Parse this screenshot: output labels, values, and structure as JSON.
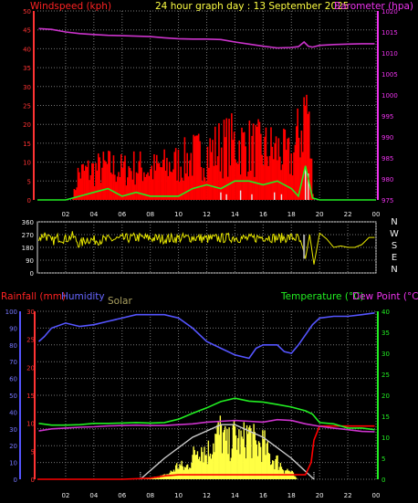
{
  "colors": {
    "background": "#000000",
    "grid": "#777777",
    "windspeed": "#ff0000",
    "wind_avg": "#22ee22",
    "gust_bars": "#e8e8e8",
    "barometer": "#cc33cc",
    "winddir": "#e8e800",
    "rainfall": "#ff0000",
    "humidity": "#5555ff",
    "solar": "#ffff44",
    "solar_max": "#cccccc",
    "temperature": "#22ee22",
    "dewpoint": "#cc33cc",
    "title": "#ffff44",
    "axis_left_top": "#ff2222",
    "axis_right_top": "#ee33ee",
    "solar_label": "#aaa060"
  },
  "chart_data": [
    {
      "id": "wind-baro",
      "type": "line",
      "title": "24 hour graph day : 13 September 2025",
      "left_label": "Windspeed (kph)",
      "right_label": "Barometer (hpa)",
      "x_ticks": [
        "02",
        "04",
        "06",
        "08",
        "10",
        "12",
        "14",
        "16",
        "18",
        "20",
        "22",
        "00"
      ],
      "x_hours": [
        2,
        4,
        6,
        8,
        10,
        12,
        14,
        16,
        18,
        20,
        22,
        24
      ],
      "ylim_left": [
        0,
        50
      ],
      "yticks_left": [
        "0",
        "5",
        "10",
        "15",
        "20",
        "25",
        "30",
        "35",
        "40",
        "45",
        "50"
      ],
      "ylim_right": [
        975,
        1020
      ],
      "yticks_right": [
        "975",
        "980",
        "985",
        "990",
        "995",
        "1000",
        "1005",
        "1010",
        "1015",
        "1020"
      ],
      "grid": true,
      "series": [
        {
          "key": "barometer",
          "axis": "right",
          "x": [
            0.1,
            1.0,
            2.0,
            3.0,
            4.0,
            5.0,
            6.0,
            7.0,
            8.0,
            9.0,
            10.0,
            11.0,
            12.0,
            13.0,
            14.0,
            15.0,
            16.0,
            17.0,
            18.0,
            18.5,
            18.9,
            19.2,
            19.5,
            20.0,
            21.0,
            22.0,
            23.0,
            23.9
          ],
          "y": [
            1015.8,
            1015.6,
            1015.0,
            1014.6,
            1014.4,
            1014.2,
            1014.1,
            1014.0,
            1013.9,
            1013.6,
            1013.4,
            1013.3,
            1013.3,
            1013.2,
            1012.6,
            1012.1,
            1011.6,
            1011.2,
            1011.3,
            1011.5,
            1012.6,
            1011.6,
            1011.4,
            1011.8,
            1012.0,
            1012.1,
            1012.2,
            1012.2
          ]
        },
        {
          "key": "wind_avg",
          "axis": "left",
          "x": [
            0,
            2,
            3,
            4,
            5,
            6,
            7,
            8,
            9,
            10,
            11,
            12,
            13,
            14,
            15,
            16,
            17,
            18,
            18.5,
            19,
            19.5,
            20,
            22,
            24
          ],
          "y": [
            0,
            0,
            1,
            2,
            3,
            1,
            2,
            1,
            1,
            1,
            3,
            4,
            3,
            5,
            5,
            4,
            5,
            3,
            1,
            9,
            0.5,
            0,
            0,
            0
          ]
        }
      ],
      "gust_profile": {
        "x": [
          0,
          2.5,
          2.9,
          4,
          5,
          6,
          7,
          8,
          9,
          10,
          11,
          12,
          13,
          14,
          15,
          16,
          17,
          18,
          18.6,
          19.1,
          19.6,
          21,
          24
        ],
        "y": [
          0,
          0,
          8,
          9,
          10,
          9,
          10,
          9,
          10,
          11,
          13,
          14,
          16,
          17,
          16,
          15,
          15,
          12,
          20,
          30,
          0,
          0,
          0
        ]
      }
    },
    {
      "id": "winddir",
      "type": "line",
      "ylim": [
        0,
        360
      ],
      "yticks": [
        "0",
        "90",
        "180",
        "270",
        "360"
      ],
      "compass_labels": [
        "N",
        "W",
        "S",
        "E",
        "N"
      ],
      "x": [
        0.1,
        0.5,
        1.0,
        1.5,
        2.0,
        2.5,
        3.0,
        3.5,
        4.0,
        5.0,
        6.0,
        7.0,
        8.0,
        9.0,
        10.0,
        11.0,
        12.0,
        13.0,
        14.0,
        15.0,
        16.0,
        17.0,
        18.0,
        18.5,
        19.0,
        19.3,
        19.6,
        20.0,
        20.5,
        21.0,
        21.5,
        22.0,
        22.5,
        23.0,
        23.5,
        23.9
      ],
      "y": [
        240,
        275,
        220,
        250,
        240,
        260,
        200,
        240,
        230,
        235,
        240,
        250,
        245,
        240,
        245,
        250,
        240,
        245,
        250,
        240,
        255,
        245,
        250,
        245,
        100,
        270,
        60,
        280,
        240,
        180,
        190,
        180,
        180,
        200,
        250,
        250
      ],
      "grid": true
    },
    {
      "id": "rain-hum-solar-temp",
      "type": "line",
      "x_ticks": [
        "02",
        "04",
        "06",
        "08",
        "10",
        "12",
        "14",
        "16",
        "18",
        "20",
        "22",
        "00"
      ],
      "x_hours": [
        2,
        4,
        6,
        8,
        10,
        12,
        14,
        16,
        18,
        20,
        22,
        24
      ],
      "labels": {
        "rainfall": "Rainfall (mm)",
        "humidity": "Humidity",
        "solar": "Solar",
        "temperature": "Temperature (°C)",
        "dewpoint": "Dew Point (°C)"
      },
      "ylim_humidity": [
        0,
        100
      ],
      "yticks_humidity": [
        "0",
        "10",
        "20",
        "30",
        "40",
        "50",
        "60",
        "70",
        "80",
        "90",
        "100"
      ],
      "ylim_rain": [
        0,
        30
      ],
      "yticks_rain": [
        "0",
        "5",
        "10",
        "15",
        "20",
        "25",
        "30"
      ],
      "ylim_temp": [
        0,
        40
      ],
      "yticks_temp": [
        "0",
        "5",
        "10",
        "15",
        "20",
        "25",
        "30",
        "35",
        "40"
      ],
      "grid": true,
      "series": [
        {
          "key": "humidity",
          "axis": "humidity",
          "x": [
            0.1,
            0.5,
            1.0,
            2.0,
            3.0,
            4.0,
            5.0,
            6.0,
            7.0,
            8.0,
            9.0,
            10.0,
            11.0,
            12.0,
            13.0,
            14.0,
            15.0,
            15.5,
            16.0,
            17.0,
            17.5,
            18.0,
            18.5,
            19.0,
            19.5,
            20.0,
            21.0,
            22.0,
            23.0,
            23.9
          ],
          "y": [
            82,
            85,
            90,
            93,
            91,
            92,
            94,
            96,
            98,
            98,
            98,
            96,
            90,
            82,
            78,
            74,
            72,
            78,
            80,
            80,
            76,
            75,
            80,
            86,
            92,
            96,
            97,
            97,
            98,
            99
          ]
        },
        {
          "key": "temperature",
          "axis": "temp",
          "x": [
            0.1,
            1.0,
            2.0,
            3.0,
            4.0,
            5.0,
            6.0,
            7.0,
            8.0,
            9.0,
            10.0,
            11.0,
            12.0,
            13.0,
            14.0,
            15.0,
            16.0,
            17.0,
            18.0,
            19.0,
            19.5,
            20.0,
            21.0,
            22.0,
            23.0,
            23.9
          ],
          "y": [
            13.3,
            12.9,
            12.9,
            13.0,
            13.3,
            13.3,
            13.4,
            13.5,
            13.4,
            13.5,
            14.3,
            15.7,
            17.0,
            18.5,
            19.3,
            18.6,
            18.4,
            17.8,
            17.2,
            16.3,
            15.5,
            13.5,
            13.2,
            12.2,
            12.2,
            11.8
          ]
        },
        {
          "key": "dewpoint",
          "axis": "temp",
          "x": [
            0.1,
            1.0,
            2.0,
            3.0,
            4.0,
            5.0,
            6.0,
            7.0,
            8.0,
            9.0,
            10.0,
            11.0,
            12.0,
            13.0,
            14.0,
            15.0,
            16.0,
            17.0,
            18.0,
            19.0,
            20.0,
            21.0,
            22.0,
            23.0,
            23.9
          ],
          "y": [
            11.5,
            12.0,
            12.2,
            12.4,
            12.5,
            12.7,
            12.8,
            12.9,
            12.8,
            12.8,
            13.0,
            13.2,
            13.6,
            13.8,
            14.0,
            13.8,
            13.6,
            14.2,
            14.0,
            13.2,
            12.6,
            12.2,
            11.8,
            11.4,
            11.3
          ]
        },
        {
          "key": "rainfall",
          "axis": "rain",
          "x": [
            0,
            6.0,
            8.0,
            9.0,
            10.0,
            13.0,
            16.0,
            18.0,
            19.0,
            19.4,
            19.6,
            20.0,
            21.0,
            23.0,
            23.9
          ],
          "y": [
            0,
            0,
            0.2,
            0.6,
            0.8,
            0.8,
            0.8,
            0.8,
            0.8,
            3.0,
            7.0,
            9.5,
            9.5,
            9.5,
            9.5
          ]
        }
      ],
      "solar_max": {
        "x": [
          7.3,
          9,
          11,
          13,
          14,
          16,
          18,
          19.6
        ],
        "temp_scale_y": [
          0,
          5,
          10,
          13,
          13,
          10,
          5,
          0
        ]
      },
      "solar_profile": {
        "x": [
          7.5,
          9.0,
          9.5,
          10.0,
          10.5,
          11.0,
          11.5,
          12.0,
          12.5,
          13.0,
          13.5,
          14.0,
          14.5,
          15.0,
          15.5,
          16.0,
          16.5,
          17.0,
          17.5,
          18.0,
          18.4
        ],
        "temp_scale_y": [
          0,
          1,
          2,
          4,
          3,
          6,
          10,
          7,
          11,
          13,
          9,
          12,
          10,
          13,
          9,
          10,
          6,
          5,
          3,
          2,
          0
        ]
      }
    }
  ]
}
